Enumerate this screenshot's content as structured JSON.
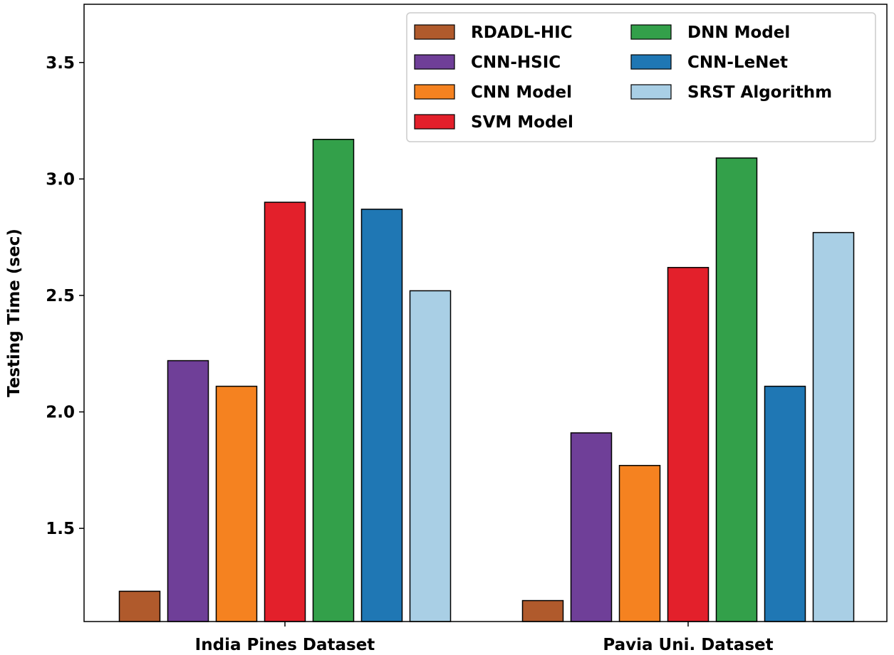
{
  "chart_data": {
    "type": "bar",
    "title": "",
    "xlabel": "",
    "ylabel": "Testing Time (sec)",
    "ylim": [
      1.1,
      3.75
    ],
    "yticks": [
      "1.5",
      "2.0",
      "2.5",
      "3.0",
      "3.5"
    ],
    "grid": false,
    "legend_position": "top-right",
    "categories": [
      "India Pines Dataset",
      "Pavia Uni. Dataset"
    ],
    "series": [
      {
        "name": "RDADL-HIC",
        "color": "#b05a2c",
        "values": [
          1.23,
          1.19
        ]
      },
      {
        "name": "CNN-HSIC",
        "color": "#6f3f98",
        "values": [
          2.22,
          1.91
        ]
      },
      {
        "name": "CNN Model",
        "color": "#f58220",
        "values": [
          2.11,
          1.77
        ]
      },
      {
        "name": "SVM Model",
        "color": "#e3202b",
        "values": [
          2.9,
          2.62
        ]
      },
      {
        "name": "DNN Model",
        "color": "#33a04a",
        "values": [
          3.17,
          3.09
        ]
      },
      {
        "name": "CNN-LeNet",
        "color": "#1f77b4",
        "values": [
          2.87,
          2.11
        ]
      },
      {
        "name": "SRST Algorithm",
        "color": "#a9cfe5",
        "values": [
          2.52,
          2.77
        ]
      }
    ]
  }
}
